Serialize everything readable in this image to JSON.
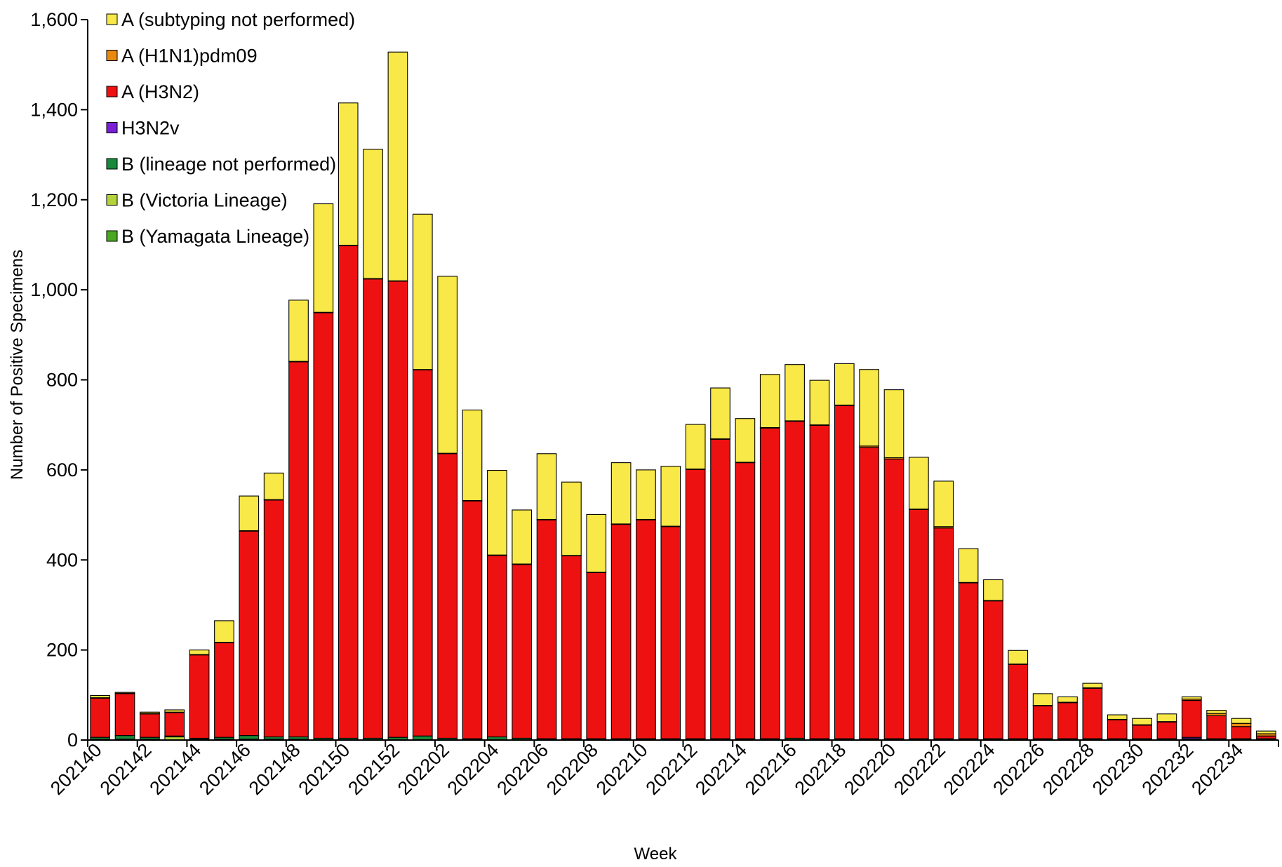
{
  "chart_data": {
    "type": "bar",
    "stacked": true,
    "xlabel": "Week",
    "ylabel": "Number of Positive Specimens",
    "ylim": [
      0,
      1600
    ],
    "yticks": [
      0,
      200,
      400,
      600,
      800,
      1000,
      1200,
      1400,
      1600
    ],
    "ytick_labels": [
      "0",
      "200",
      "400",
      "600",
      "800",
      "1,000",
      "1,200",
      "1,400",
      "1,600"
    ],
    "grid": false,
    "legend_position": "top-left",
    "categories": [
      "202140",
      "202141",
      "202142",
      "202143",
      "202144",
      "202145",
      "202146",
      "202147",
      "202148",
      "202149",
      "202150",
      "202151",
      "202152",
      "202201",
      "202202",
      "202203",
      "202204",
      "202205",
      "202206",
      "202207",
      "202208",
      "202209",
      "202210",
      "202211",
      "202212",
      "202213",
      "202214",
      "202215",
      "202216",
      "202217",
      "202218",
      "202219",
      "202220",
      "202221",
      "202222",
      "202223",
      "202224",
      "202225",
      "202226",
      "202227",
      "202228",
      "202229",
      "202230",
      "202231",
      "202232",
      "202233",
      "202234",
      "202235"
    ],
    "tick_labels": [
      "202140",
      "202142",
      "202144",
      "202146",
      "202148",
      "202150",
      "202152",
      "202202",
      "202204",
      "202206",
      "202208",
      "202210",
      "202212",
      "202214",
      "202216",
      "202218",
      "202220",
      "202222",
      "202224",
      "202226",
      "202228",
      "202230",
      "202232",
      "202234"
    ],
    "series": [
      {
        "name": "B (Yamagata Lineage)",
        "color": "#4aa820",
        "values": [
          0,
          0,
          0,
          0,
          0,
          0,
          0,
          0,
          0,
          0,
          0,
          0,
          0,
          0,
          0,
          0,
          0,
          0,
          0,
          0,
          0,
          0,
          0,
          0,
          0,
          0,
          0,
          0,
          0,
          0,
          0,
          0,
          0,
          0,
          0,
          0,
          0,
          0,
          0,
          0,
          0,
          0,
          0,
          0,
          0,
          0,
          0,
          0
        ]
      },
      {
        "name": "B (Victoria Lineage)",
        "color": "#b4d23c",
        "values": [
          2,
          2,
          2,
          7,
          2,
          2,
          2,
          2,
          2,
          1,
          1,
          1,
          1,
          1,
          1,
          1,
          1,
          1,
          1,
          1,
          1,
          1,
          1,
          1,
          1,
          1,
          1,
          1,
          1,
          1,
          1,
          1,
          1,
          1,
          1,
          1,
          1,
          1,
          1,
          1,
          1,
          1,
          1,
          1,
          1,
          1,
          1,
          1
        ]
      },
      {
        "name": "B (lineage not performed)",
        "color": "#1a8a3a",
        "values": [
          4,
          8,
          4,
          2,
          2,
          4,
          8,
          5,
          5,
          3,
          3,
          3,
          5,
          8,
          3,
          2,
          6,
          3,
          2,
          2,
          2,
          2,
          2,
          2,
          2,
          2,
          2,
          2,
          3,
          2,
          2,
          2,
          2,
          2,
          2,
          2,
          2,
          2,
          2,
          2,
          2,
          2,
          2,
          2,
          2,
          2,
          2,
          2
        ]
      },
      {
        "name": "H3N2v",
        "color": "#7a1fd6",
        "values": [
          0,
          0,
          0,
          0,
          0,
          0,
          0,
          0,
          0,
          0,
          0,
          0,
          0,
          0,
          0,
          0,
          0,
          0,
          0,
          0,
          0,
          0,
          0,
          0,
          0,
          0,
          0,
          0,
          0,
          0,
          0,
          0,
          0,
          0,
          0,
          0,
          0,
          0,
          0,
          0,
          0,
          0,
          0,
          0,
          3,
          0,
          0,
          0
        ]
      },
      {
        "name": "A (H3N2)",
        "color": "#ee1111",
        "values": [
          87,
          93,
          52,
          52,
          185,
          210,
          454,
          526,
          833,
          945,
          1094,
          1020,
          1013,
          813,
          632,
          528,
          403,
          386,
          486,
          406,
          369,
          476,
          486,
          471,
          598,
          665,
          613,
          690,
          704,
          696,
          740,
          647,
          621,
          509,
          468,
          346,
          306,
          165,
          73,
          80,
          112,
          42,
          30,
          37,
          82,
          51,
          27,
          6
        ]
      },
      {
        "name": "A (H1N1)pdm09",
        "color": "#e88a10",
        "values": [
          1,
          1,
          1,
          1,
          1,
          1,
          1,
          1,
          1,
          1,
          1,
          1,
          1,
          1,
          1,
          1,
          1,
          1,
          1,
          1,
          1,
          1,
          1,
          1,
          1,
          1,
          1,
          1,
          1,
          1,
          1,
          3,
          3,
          1,
          3,
          1,
          1,
          1,
          1,
          1,
          1,
          1,
          1,
          1,
          3,
          5,
          7,
          5
        ]
      },
      {
        "name": "A (subtyping not performed)",
        "color": "#f8e848",
        "values": [
          5,
          2,
          3,
          5,
          10,
          48,
          77,
          59,
          136,
          241,
          316,
          287,
          508,
          345,
          393,
          201,
          188,
          120,
          146,
          163,
          128,
          136,
          110,
          133,
          99,
          113,
          97,
          118,
          125,
          99,
          92,
          170,
          151,
          115,
          101,
          75,
          46,
          30,
          26,
          12,
          10,
          10,
          14,
          17,
          5,
          7,
          11,
          6
        ]
      }
    ],
    "legend_order": [
      "A (subtyping not performed)",
      "A (H1N1)pdm09",
      "A (H3N2)",
      "H3N2v",
      "B (lineage not performed)",
      "B (Victoria Lineage)",
      "B (Yamagata Lineage)"
    ]
  }
}
